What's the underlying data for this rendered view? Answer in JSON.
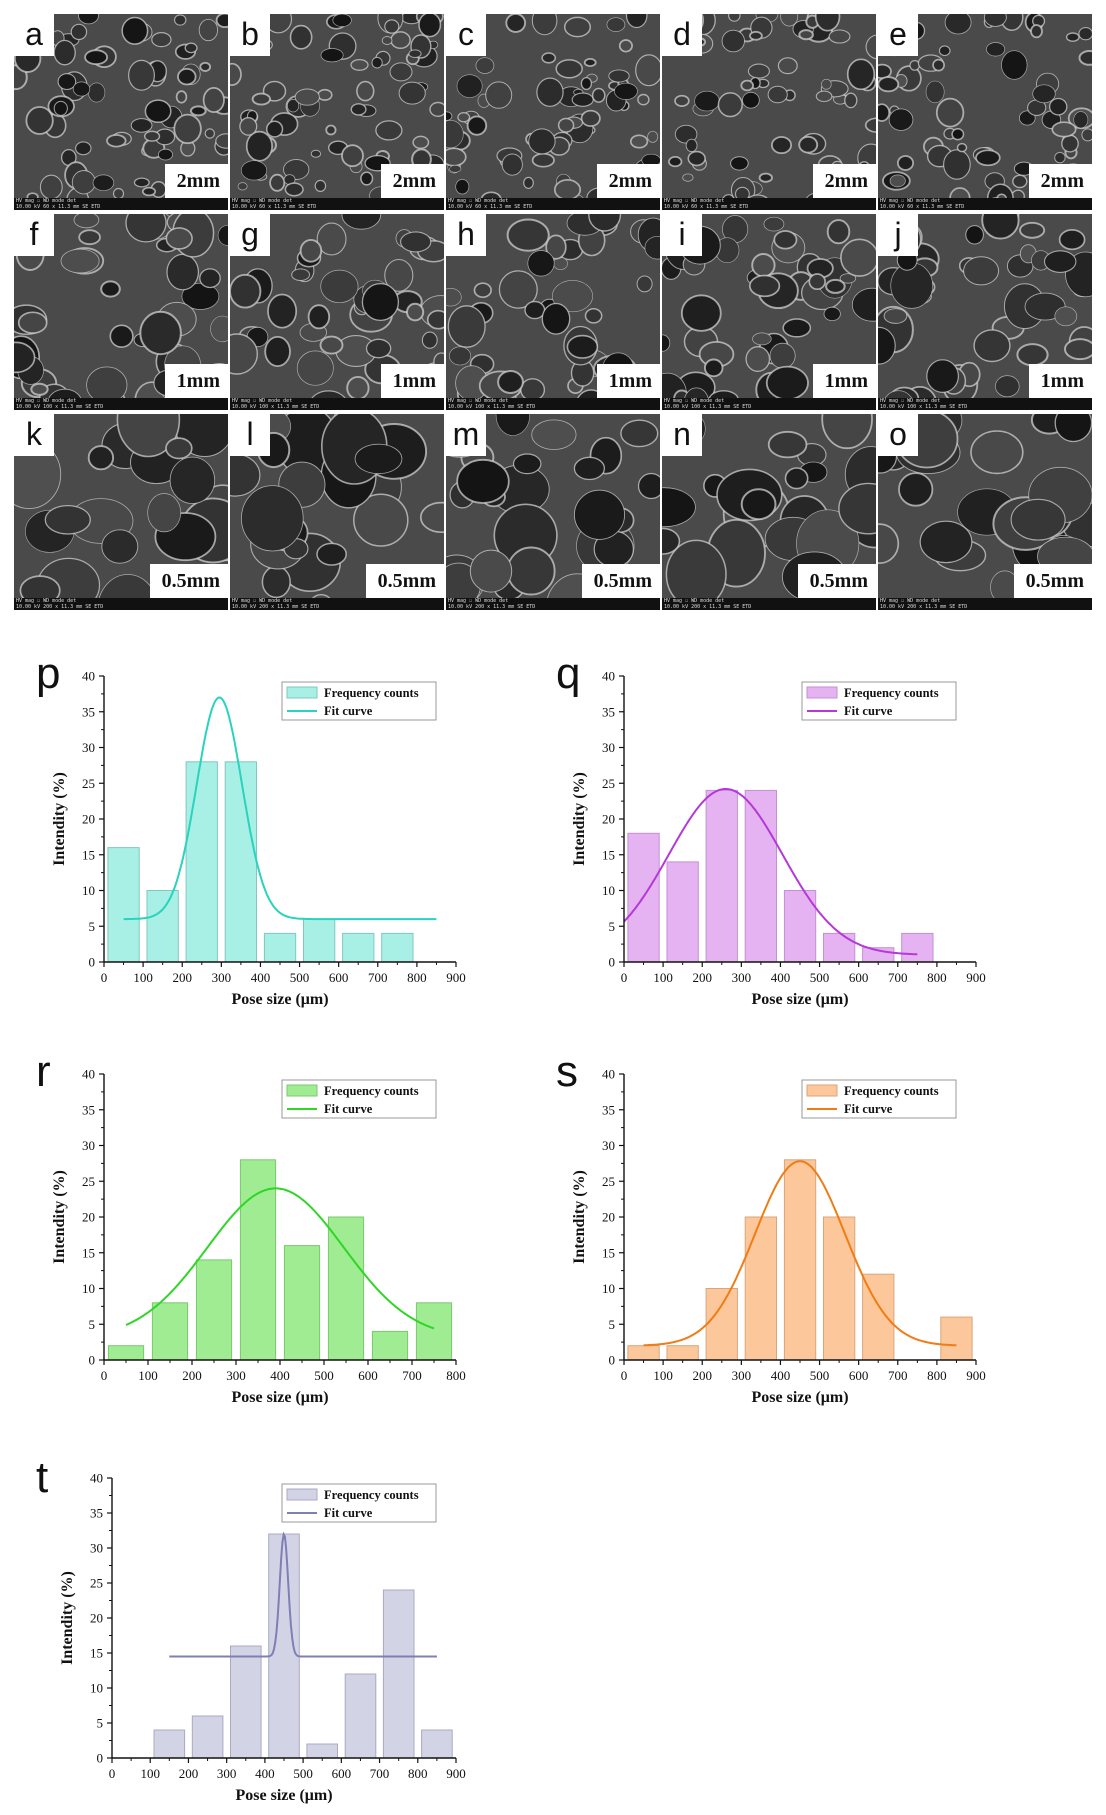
{
  "sem_panels": [
    {
      "label": "a",
      "scale": "2mm"
    },
    {
      "label": "b",
      "scale": "2mm"
    },
    {
      "label": "c",
      "scale": "2mm"
    },
    {
      "label": "d",
      "scale": "2mm"
    },
    {
      "label": "e",
      "scale": "2mm"
    },
    {
      "label": "f",
      "scale": "1mm"
    },
    {
      "label": "g",
      "scale": "1mm"
    },
    {
      "label": "h",
      "scale": "1mm"
    },
    {
      "label": "i",
      "scale": "1mm"
    },
    {
      "label": "j",
      "scale": "1mm"
    },
    {
      "label": "k",
      "scale": "0.5mm"
    },
    {
      "label": "l",
      "scale": "0.5mm"
    },
    {
      "label": "m",
      "scale": "0.5mm"
    },
    {
      "label": "n",
      "scale": "0.5mm"
    },
    {
      "label": "o",
      "scale": "0.5mm"
    }
  ],
  "sem_infobar": {
    "header": "HV    mag ☐    WD    mode  det",
    "row_2mm": "10.00 kV   60 x   11.3 mm   SE   ETD",
    "row_1mm": "10.00 kV  100 x   11.3 mm   SE   ETD",
    "row_05mm": "10.00 kV  200 x   11.3 mm   SE   ETD"
  },
  "chart_data": [
    {
      "panel": "p",
      "type": "bar",
      "xlabel": "Pose size (μm)",
      "ylabel": "Intendity (%)",
      "xlim": [
        0,
        900
      ],
      "ylim": [
        0,
        40
      ],
      "xticks": [
        0,
        100,
        200,
        300,
        400,
        500,
        600,
        700,
        800,
        900
      ],
      "yticks": [
        0,
        5,
        10,
        15,
        20,
        25,
        30,
        35,
        40
      ],
      "bar_width": 80,
      "bins": [
        50,
        150,
        250,
        350,
        450,
        550,
        650,
        750
      ],
      "values": [
        16,
        10,
        28,
        28,
        4,
        6,
        4,
        4
      ],
      "legend": {
        "bar": "Frequency counts",
        "line": "Fit curve",
        "position": "top-right"
      },
      "fit": {
        "y0": 6,
        "A": 31,
        "xc": 295,
        "w": 58,
        "x_range": [
          50,
          850
        ]
      },
      "bar_fill": "#a8efe6",
      "bar_stroke": "#7fc9c0",
      "line_color": "#29d3bd"
    },
    {
      "panel": "q",
      "type": "bar",
      "xlabel": "Pose size (μm)",
      "ylabel": "Intendity (%)",
      "xlim": [
        0,
        900
      ],
      "ylim": [
        0,
        40
      ],
      "xticks": [
        0,
        100,
        200,
        300,
        400,
        500,
        600,
        700,
        800,
        900
      ],
      "yticks": [
        0,
        5,
        10,
        15,
        20,
        25,
        30,
        35,
        40
      ],
      "bar_width": 80,
      "bins": [
        50,
        150,
        250,
        350,
        450,
        550,
        650,
        750
      ],
      "values": [
        18,
        14,
        24,
        24,
        10,
        4,
        2,
        4
      ],
      "legend": {
        "bar": "Frequency counts",
        "line": "Fit curve",
        "position": "top-right"
      },
      "fit": {
        "y0": 1,
        "A": 23.2,
        "xc": 260,
        "w": 145,
        "x_range": [
          0,
          750
        ]
      },
      "bar_fill": "#e5b3f1",
      "bar_stroke": "#c58fd3",
      "line_color": "#b539d8"
    },
    {
      "panel": "r",
      "type": "bar",
      "xlabel": "Pose size (μm)",
      "ylabel": "Intendity (%)",
      "xlim": [
        0,
        800
      ],
      "ylim": [
        0,
        40
      ],
      "xticks": [
        0,
        100,
        200,
        300,
        400,
        500,
        600,
        700,
        800
      ],
      "yticks": [
        0,
        5,
        10,
        15,
        20,
        25,
        30,
        35,
        40
      ],
      "bar_width": 80,
      "bins": [
        50,
        150,
        250,
        350,
        450,
        550,
        650,
        750
      ],
      "values": [
        2,
        8,
        14,
        28,
        16,
        20,
        4,
        8
      ],
      "legend": {
        "bar": "Frequency counts",
        "line": "Fit curve",
        "position": "top-right"
      },
      "fit": {
        "y0": 3,
        "A": 21,
        "xc": 390,
        "w": 155,
        "x_range": [
          50,
          750
        ]
      },
      "bar_fill": "#9fec93",
      "bar_stroke": "#7bc96f",
      "line_color": "#2fd626"
    },
    {
      "panel": "s",
      "type": "bar",
      "xlabel": "Pose size (μm)",
      "ylabel": "Intendity (%)",
      "xlim": [
        0,
        900
      ],
      "ylim": [
        0,
        40
      ],
      "xticks": [
        0,
        100,
        200,
        300,
        400,
        500,
        600,
        700,
        800,
        900
      ],
      "yticks": [
        0,
        5,
        10,
        15,
        20,
        25,
        30,
        35,
        40
      ],
      "bar_width": 80,
      "bins": [
        50,
        150,
        250,
        350,
        450,
        550,
        650,
        750,
        850
      ],
      "values": [
        2,
        2,
        10,
        20,
        28,
        20,
        12,
        0,
        6
      ],
      "legend": {
        "bar": "Frequency counts",
        "line": "Fit curve",
        "position": "top-right"
      },
      "fit": {
        "y0": 2,
        "A": 25.8,
        "xc": 450,
        "w": 115,
        "x_range": [
          50,
          850
        ]
      },
      "bar_fill": "#fcc89b",
      "bar_stroke": "#d9a57a",
      "line_color": "#f07c16"
    },
    {
      "panel": "t",
      "type": "bar",
      "xlabel": "Pose size (μm)",
      "ylabel": "Intendity (%)",
      "xlim": [
        0,
        900
      ],
      "ylim": [
        0,
        40
      ],
      "xticks": [
        0,
        100,
        200,
        300,
        400,
        500,
        600,
        700,
        800,
        900
      ],
      "yticks": [
        0,
        5,
        10,
        15,
        20,
        25,
        30,
        35,
        40
      ],
      "bar_width": 80,
      "bins": [
        150,
        250,
        350,
        450,
        550,
        650,
        750,
        850
      ],
      "values": [
        4,
        6,
        16,
        32,
        2,
        12,
        24,
        4
      ],
      "legend": {
        "bar": "Frequency counts",
        "line": "Fit curve",
        "position": "top-right"
      },
      "fit": {
        "y0": 14.5,
        "A": 17.5,
        "xc": 450,
        "w": 11,
        "x_range": [
          150,
          850
        ]
      },
      "bar_fill": "#d3d3e6",
      "bar_stroke": "#a9a9c4",
      "line_color": "#7f7fb5"
    }
  ]
}
